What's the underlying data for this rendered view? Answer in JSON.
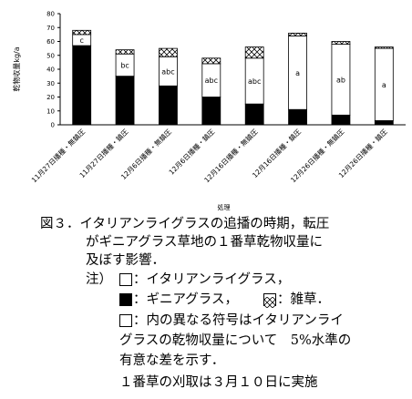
{
  "chart_data": {
    "type": "bar",
    "stacked": true,
    "categories": [
      "11月27日播種・無鎮圧",
      "11月27日播種・鎮圧",
      "12月6日播種・無鎮圧",
      "12月6日播種・鎮圧",
      "12月16日播種・無鎮圧",
      "12月16日播種・鎮圧",
      "12月26日播種・無鎮圧",
      "12月26日播種・鎮圧"
    ],
    "series": [
      {
        "key": "guinea",
        "values": [
          57,
          35,
          28,
          20,
          15,
          11,
          7,
          3
        ],
        "color": "#000000"
      },
      {
        "key": "italian",
        "values": [
          8,
          16,
          21,
          24,
          33,
          53,
          51,
          52
        ],
        "color": "#ffffff"
      },
      {
        "key": "weed",
        "values": [
          3,
          3,
          6,
          4,
          8,
          2,
          2,
          1
        ],
        "color": "hatch"
      }
    ],
    "letters": [
      "c",
      "bc",
      "abc",
      "abc",
      "abc",
      "a",
      "ab",
      "a"
    ],
    "ylim": [
      0,
      80
    ],
    "yticks": [
      0,
      10,
      20,
      30,
      40,
      50,
      60,
      70,
      80
    ],
    "ylabel": "乾物収量kg/a",
    "xlabel": "処理"
  },
  "caption": {
    "line1": "図３．イタリアンライグラスの追播の時期，転圧",
    "line2": "がギニアグラス草地の１番草乾物収量に",
    "line3": "及ぼす影響．",
    "note_prefix": "注）",
    "legend_italian": "：イタリアンライグラス，",
    "legend_guinea": "：ギニアグラス，",
    "legend_weed": "：雑草．",
    "note3_line1": "：内の異なる符号はイタリアンライ",
    "note3_line2": "グラスの乾物収量について　5%水準の",
    "note3_line3": "有意な差を示す．",
    "note4": "１番草の刈取は３月１０日に実施"
  }
}
